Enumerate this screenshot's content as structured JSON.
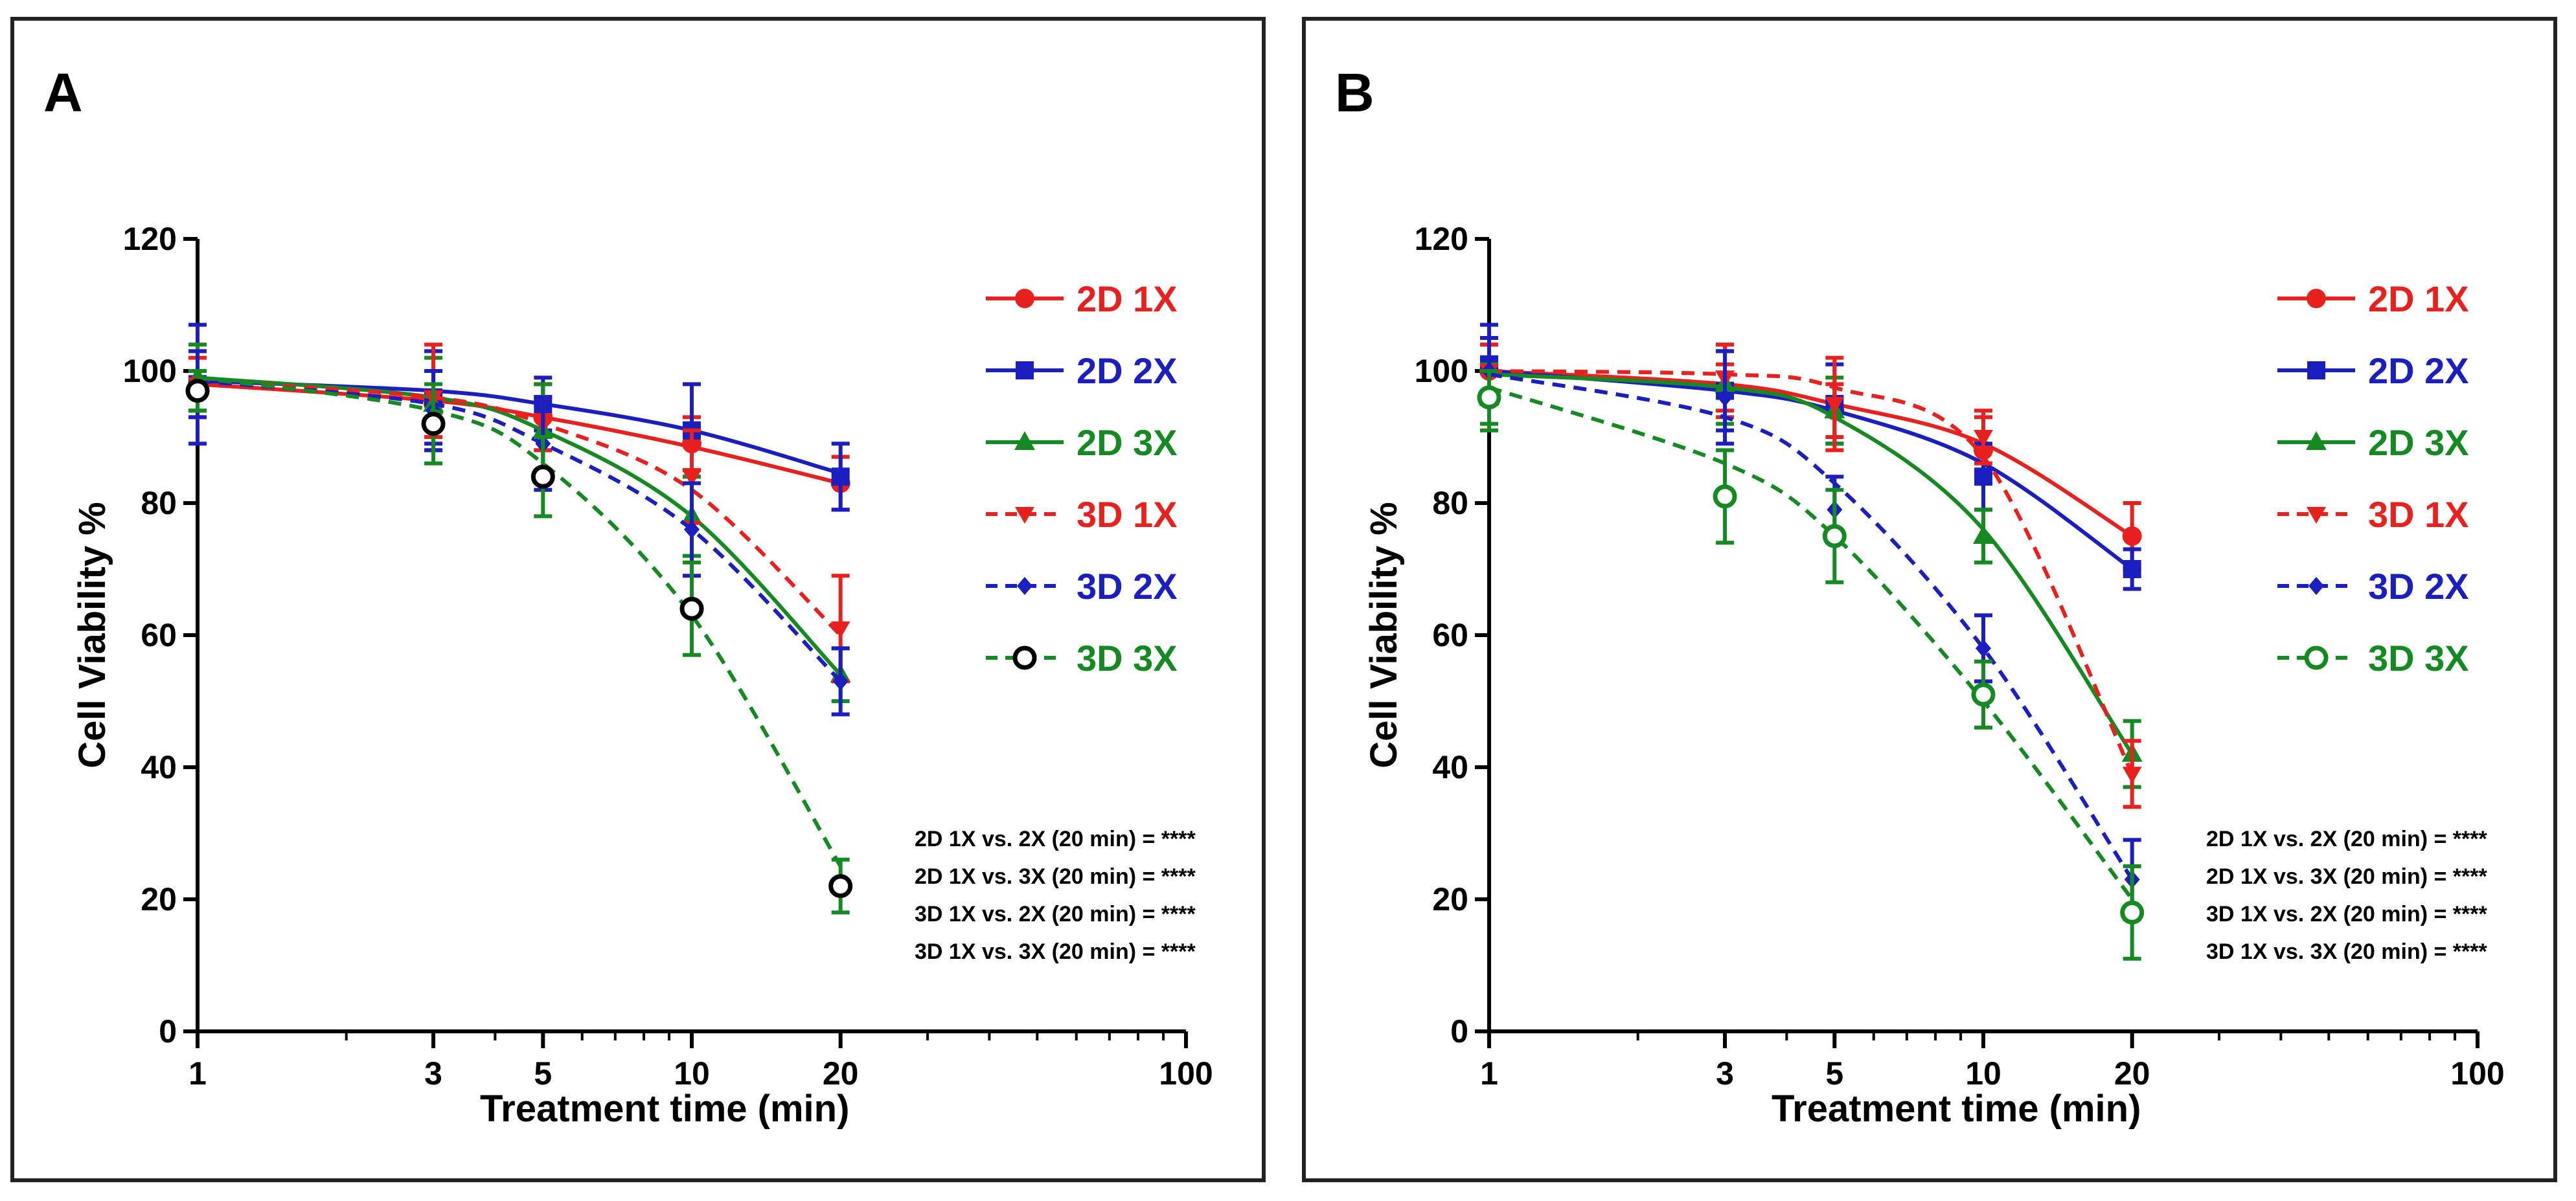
{
  "chart_data": [
    {
      "type": "line",
      "panel_label": "A",
      "xlabel": "Treatment time (min)",
      "ylabel": "Cell Viability %",
      "xscale": "log",
      "xlim": [
        1,
        100
      ],
      "ylim": [
        0,
        120
      ],
      "xticks": [
        1,
        3,
        5,
        10,
        20,
        100
      ],
      "yticks": [
        0,
        20,
        40,
        60,
        80,
        100,
        120
      ],
      "legend_position": "top-right",
      "x": [
        1,
        3,
        5,
        10,
        20
      ],
      "series": [
        {
          "name": "2D 1X",
          "color": "#e8211f",
          "marker": "circle",
          "line": "solid",
          "values": [
            98,
            95,
            93,
            89,
            83
          ],
          "errors": [
            4,
            5,
            5,
            4,
            4
          ],
          "fit": [
            98,
            95.5,
            93,
            88.5,
            83
          ]
        },
        {
          "name": "2D 2X",
          "color": "#1c1fbf",
          "marker": "square",
          "line": "solid",
          "values": [
            98,
            96,
            95,
            91,
            84
          ],
          "errors": [
            9,
            7,
            4,
            7,
            5
          ],
          "fit": [
            98.5,
            97,
            95,
            91,
            84.5
          ]
        },
        {
          "name": "2D 3X",
          "color": "#168a22",
          "marker": "triangle-up",
          "line": "solid",
          "values": [
            99,
            95,
            91,
            78,
            54
          ],
          "errors": [
            5,
            7,
            7,
            6,
            4
          ],
          "fit": [
            99,
            96,
            91,
            78,
            54
          ]
        },
        {
          "name": "3D 1X",
          "color": "#e8211f",
          "marker": "triangle-down",
          "line": "dashed",
          "values": [
            98,
            96,
            92,
            84,
            61
          ],
          "errors": [
            5,
            8,
            4,
            7,
            8
          ],
          "fit": [
            98.5,
            96,
            92,
            82,
            60
          ]
        },
        {
          "name": "3D 2X",
          "color": "#1c1fbf",
          "marker": "diamond",
          "line": "dashed",
          "values": [
            98,
            94,
            89,
            76,
            53
          ],
          "errors": [
            5,
            6,
            7,
            7,
            5
          ],
          "fit": [
            98.5,
            95,
            89,
            76,
            53
          ]
        },
        {
          "name": "3D 3X",
          "color": "#168a22",
          "marker": "circle-open",
          "line": "dashed",
          "marker_color": "#000000",
          "values": [
            97,
            92,
            84,
            64,
            22
          ],
          "errors": [
            3,
            6,
            6,
            7,
            4
          ],
          "fit": [
            99,
            94,
            86,
            63,
            25
          ]
        }
      ],
      "annotations": [
        "2D 1X vs. 2X (20 min) = ****",
        "2D 1X vs. 3X (20 min) = ****",
        "3D 1X vs. 2X (20 min) = ****",
        "3D 1X vs. 3X (20 min) = ****"
      ]
    },
    {
      "type": "line",
      "panel_label": "B",
      "xlabel": "Treatment time (min)",
      "ylabel": "Cell Viability %",
      "xscale": "log",
      "xlim": [
        1,
        100
      ],
      "ylim": [
        0,
        120
      ],
      "xticks": [
        1,
        3,
        5,
        10,
        20,
        100
      ],
      "yticks": [
        0,
        20,
        40,
        60,
        80,
        100,
        120
      ],
      "legend_position": "top-right",
      "x": [
        1,
        3,
        5,
        10,
        20
      ],
      "series": [
        {
          "name": "2D 1X",
          "color": "#e8211f",
          "marker": "circle",
          "line": "solid",
          "values": [
            100,
            97,
            94,
            88,
            75
          ],
          "errors": [
            4,
            4,
            4,
            5,
            5
          ],
          "fit": [
            100,
            98,
            95,
            89,
            75
          ]
        },
        {
          "name": "2D 2X",
          "color": "#1c1fbf",
          "marker": "square",
          "line": "solid",
          "values": [
            101,
            97,
            95,
            84,
            70
          ],
          "errors": [
            6,
            6,
            6,
            5,
            3
          ],
          "fit": [
            100,
            97,
            94,
            86,
            70
          ]
        },
        {
          "name": "2D 3X",
          "color": "#168a22",
          "marker": "triangle-up",
          "line": "solid",
          "values": [
            96,
            98,
            94,
            75,
            42
          ],
          "errors": [
            5,
            6,
            5,
            4,
            5
          ],
          "fit": [
            99.5,
            97.5,
            93,
            76,
            42
          ]
        },
        {
          "name": "3D 1X",
          "color": "#e8211f",
          "marker": "triangle-down",
          "line": "dashed",
          "values": [
            100,
            99,
            95,
            90,
            39
          ],
          "errors": [
            4,
            5,
            7,
            4,
            5
          ],
          "fit": [
            100,
            99.5,
            97.5,
            87,
            39
          ]
        },
        {
          "name": "3D 2X",
          "color": "#1c1fbf",
          "marker": "diamond",
          "line": "dashed",
          "values": [
            100,
            96,
            79,
            58,
            23
          ],
          "errors": [
            5,
            7,
            5,
            5,
            6
          ],
          "fit": [
            99.5,
            93,
            83,
            58,
            23
          ]
        },
        {
          "name": "3D 3X",
          "color": "#168a22",
          "marker": "circle-open",
          "line": "dashed",
          "values": [
            96,
            81,
            75,
            51,
            18
          ],
          "errors": [
            4,
            7,
            7,
            5,
            7
          ],
          "fit": [
            97.5,
            86,
            75,
            50,
            20
          ]
        }
      ],
      "annotations": [
        "2D 1X vs. 2X (20 min) = ****",
        "2D 1X vs. 3X (20 min) = ****",
        "3D 1X vs. 2X (20 min) = ****",
        "3D 1X vs. 3X (20 min) = ****"
      ]
    }
  ]
}
